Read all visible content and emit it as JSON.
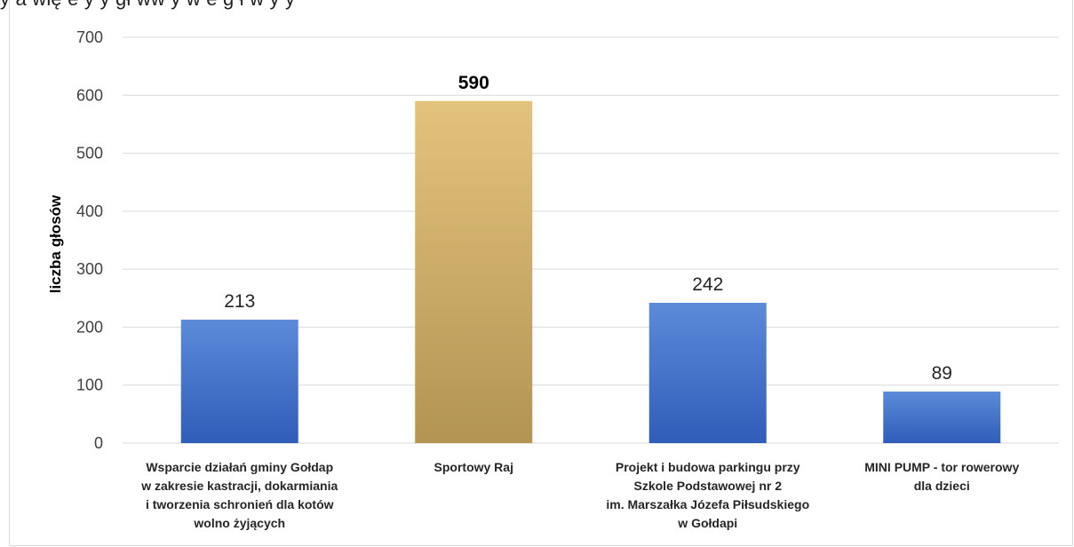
{
  "header_fragment": "y a wię e y y gł ww y w e g ł w y y",
  "chart_data": {
    "type": "bar",
    "title": "",
    "xlabel": "",
    "ylabel": "liczba głosów",
    "ylim": [
      0,
      700
    ],
    "yticks": [
      0,
      100,
      200,
      300,
      400,
      500,
      600,
      700
    ],
    "ytick_labels": [
      "0",
      "100",
      "200",
      "300",
      "400",
      "500",
      "600",
      "700"
    ],
    "grid": "horizontal",
    "legend": "none",
    "categories": [
      "Wsparcie działań gminy Gołdap\nw zakresie kastracji, dokarmiania\ni tworzenia schronień dla kotów\nwolno żyjących",
      "Sportowy Raj",
      "Projekt i budowa parkingu przy\nSzkole Podstawowej nr 2\nim. Marszałka Józefa Piłsudskiego\nw Gołdapi",
      "MINI PUMP - tor rowerowy\ndla dzieci"
    ],
    "values": [
      213,
      590,
      242,
      89
    ],
    "data_labels": [
      "213",
      "590",
      "242",
      "89"
    ],
    "highlighted_index": 1,
    "colors": {
      "bar_top": "#5b8bd9",
      "bar_bottom": "#2f5db8",
      "highlight_top": "#e3c37c",
      "highlight_bottom": "#b39453",
      "grid": "#d9d9d9"
    }
  }
}
